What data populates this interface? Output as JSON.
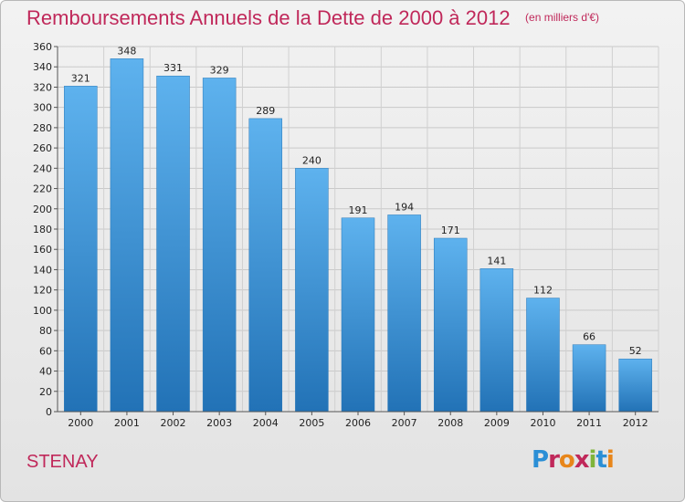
{
  "header": {
    "title": "Remboursements Annuels de la Dette de 2000 à 2012",
    "subtitle": "(en milliers d'€)"
  },
  "place_name": "STENAY",
  "logo": {
    "text": "Proxiti"
  },
  "colors": {
    "title": "#c0285a",
    "bar_light": "#5aaeea",
    "bar_dark": "#2376bb"
  },
  "chart_data": {
    "type": "bar",
    "title": "Remboursements Annuels de la Dette de 2000 à 2012",
    "subtitle": "(en milliers d'€)",
    "xlabel": "",
    "ylabel": "",
    "categories": [
      "2000",
      "2001",
      "2002",
      "2003",
      "2004",
      "2005",
      "2006",
      "2007",
      "2008",
      "2009",
      "2010",
      "2011",
      "2012"
    ],
    "values": [
      321,
      348,
      331,
      329,
      289,
      240,
      191,
      194,
      171,
      141,
      112,
      66,
      52
    ],
    "ylim": [
      0,
      360
    ],
    "yticks": [
      0,
      20,
      40,
      60,
      80,
      100,
      120,
      140,
      160,
      180,
      200,
      220,
      240,
      260,
      280,
      300,
      320,
      340,
      360
    ],
    "grid": true,
    "legend": "none",
    "data_labels": true
  }
}
